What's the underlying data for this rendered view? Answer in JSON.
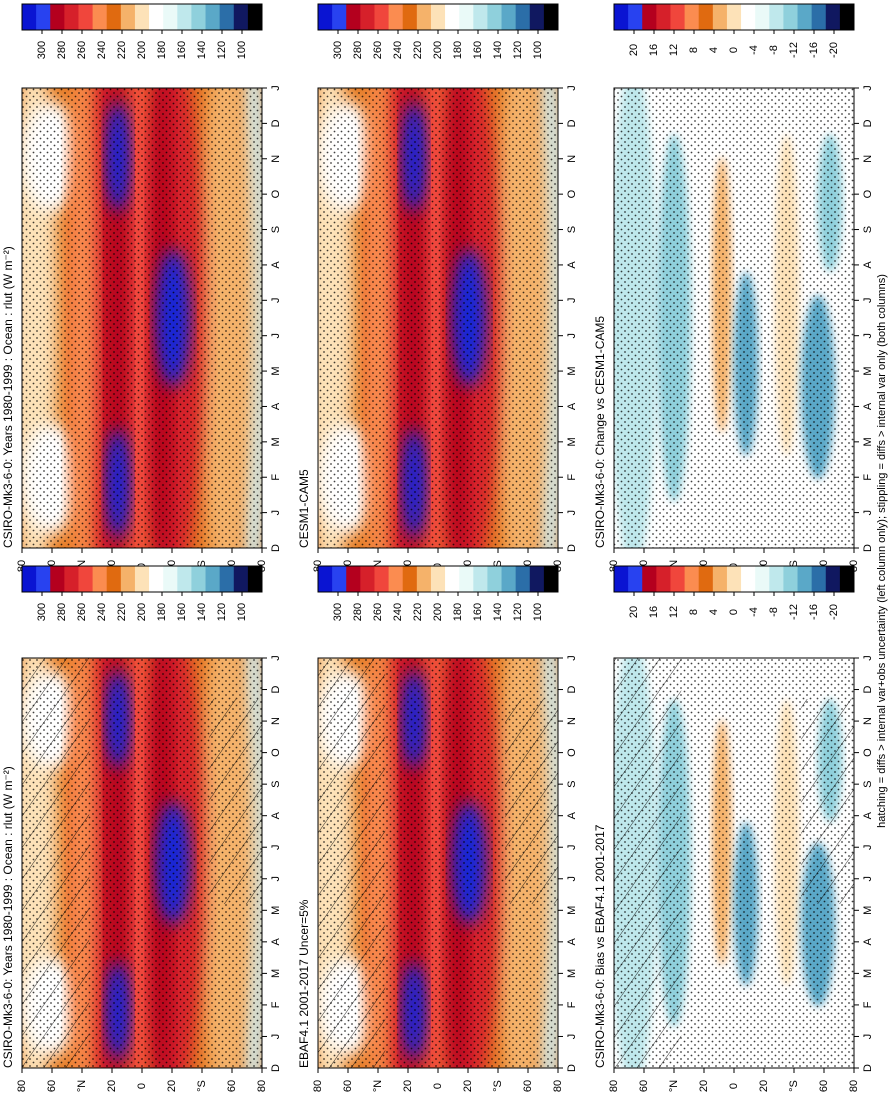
{
  "figure": {
    "footer": "hatching = diffs > internal var+obs uncertainty (left column only); stippling = diffs > internal var only (both columns)",
    "month_labels": [
      "D",
      "J",
      "F",
      "M",
      "A",
      "M",
      "J",
      "J",
      "A",
      "S",
      "O",
      "N",
      "D",
      "J"
    ],
    "lat_labels": [
      "80",
      "60",
      "°N",
      "20",
      "0",
      "20",
      "°S",
      "60",
      "80"
    ],
    "colorbar_abs_ticks": [
      "300",
      "280",
      "260",
      "240",
      "220",
      "200",
      "180",
      "160",
      "140",
      "120",
      "100"
    ],
    "colorbar_diff_ticks": [
      "20",
      "16",
      "12",
      "8",
      "4",
      "0",
      "-4",
      "-8",
      "-12",
      "-16",
      "-20"
    ],
    "colorbar_abs_colors": [
      "#0a14d2",
      "#2842f0",
      "#b4001e",
      "#d6202a",
      "#f0463c",
      "#fb8c50",
      "#e06a10",
      "#f5b26a",
      "#fde2b8",
      "#ffffff",
      "#eafaf8",
      "#bfe8ec",
      "#8fd0dc",
      "#5aa8c8",
      "#2b6ea8",
      "#101860",
      "#000000"
    ],
    "colorbar_diff_colors": [
      "#0a14d2",
      "#2842f0",
      "#b4001e",
      "#d6202a",
      "#f0463c",
      "#fb8c50",
      "#e06a10",
      "#f5b26a",
      "#fde2b8",
      "#ffffff",
      "#eafaf8",
      "#bfe8ec",
      "#8fd0dc",
      "#5aa8c8",
      "#2b6ea8",
      "#101860",
      "#000000"
    ]
  },
  "chart_data": [
    {
      "type": "heatmap",
      "title": "CSIRO-Mk3-6-0: Years 1980-1999 : Ocean : rlut (W m⁻²)",
      "x": [
        "D",
        "J",
        "F",
        "M",
        "A",
        "M",
        "J",
        "J",
        "A",
        "S",
        "O",
        "N",
        "D",
        "J"
      ],
      "y": [
        "80",
        "60",
        "°N",
        "20",
        "0",
        "20",
        "°S",
        "60",
        "80"
      ],
      "colorbar_ticks": [
        300,
        280,
        260,
        240,
        220,
        200,
        180,
        160,
        140,
        120,
        100
      ],
      "zlim": [
        100,
        300
      ],
      "hatching": true
    },
    {
      "type": "heatmap",
      "title": "CSIRO-Mk3-6-0: Years 1980-1999 : Ocean : rlut (W m⁻²)",
      "x": [
        "D",
        "J",
        "F",
        "M",
        "A",
        "M",
        "J",
        "J",
        "A",
        "S",
        "O",
        "N",
        "D",
        "J"
      ],
      "y": [
        "80",
        "60",
        "°N",
        "20",
        "0",
        "20",
        "°S",
        "60",
        "80"
      ],
      "colorbar_ticks": [
        300,
        280,
        260,
        240,
        220,
        200,
        180,
        160,
        140,
        120,
        100
      ],
      "zlim": [
        100,
        300
      ],
      "hatching": false
    },
    {
      "type": "heatmap",
      "title": "EBAF4.1 2001-2017 Uncer=5%",
      "x": [
        "D",
        "J",
        "F",
        "M",
        "A",
        "M",
        "J",
        "J",
        "A",
        "S",
        "O",
        "N",
        "D",
        "J"
      ],
      "y": [
        "80",
        "60",
        "°N",
        "20",
        "0",
        "20",
        "°S",
        "60",
        "80"
      ],
      "colorbar_ticks": [
        300,
        280,
        260,
        240,
        220,
        200,
        180,
        160,
        140,
        120,
        100
      ],
      "zlim": [
        100,
        300
      ],
      "hatching": true
    },
    {
      "type": "heatmap",
      "title": "CESM1-CAM5",
      "x": [
        "D",
        "J",
        "F",
        "M",
        "A",
        "M",
        "J",
        "J",
        "A",
        "S",
        "O",
        "N",
        "D",
        "J"
      ],
      "y": [
        "80",
        "60",
        "°N",
        "20",
        "0",
        "20",
        "°S",
        "60",
        "80"
      ],
      "colorbar_ticks": [
        300,
        280,
        260,
        240,
        220,
        200,
        180,
        160,
        140,
        120,
        100
      ],
      "zlim": [
        100,
        300
      ],
      "hatching": false
    },
    {
      "type": "heatmap",
      "title": "CSIRO-Mk3-6-0: Bias vs EBAF4.1 2001-2017",
      "x": [
        "D",
        "J",
        "F",
        "M",
        "A",
        "M",
        "J",
        "J",
        "A",
        "S",
        "O",
        "N",
        "D",
        "J"
      ],
      "y": [
        "80",
        "60",
        "°N",
        "20",
        "0",
        "20",
        "°S",
        "60",
        "80"
      ],
      "colorbar_ticks": [
        20,
        16,
        12,
        8,
        4,
        0,
        -4,
        -8,
        -12,
        -16,
        -20
      ],
      "zlim": [
        -20,
        20
      ],
      "hatching": true
    },
    {
      "type": "heatmap",
      "title": "CSIRO-Mk3-6-0: Change vs CESM1-CAM5",
      "x": [
        "D",
        "J",
        "F",
        "M",
        "A",
        "M",
        "J",
        "J",
        "A",
        "S",
        "O",
        "N",
        "D",
        "J"
      ],
      "y": [
        "80",
        "60",
        "°N",
        "20",
        "0",
        "20",
        "°S",
        "60",
        "80"
      ],
      "colorbar_ticks": [
        20,
        16,
        12,
        8,
        4,
        0,
        -4,
        -8,
        -12,
        -16,
        -20
      ],
      "zlim": [
        -20,
        20
      ],
      "hatching": false
    }
  ]
}
